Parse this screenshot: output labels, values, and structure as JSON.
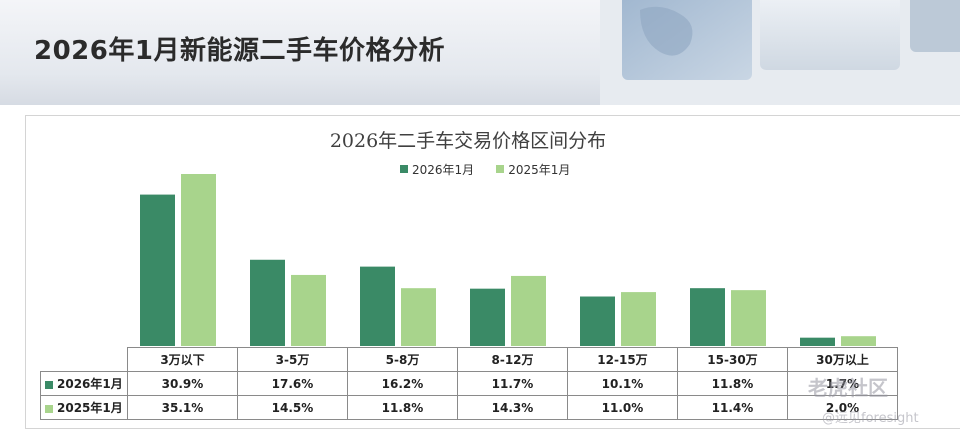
{
  "header": {
    "title": "2026年1月新能源二手车价格分析"
  },
  "chart_data": {
    "type": "bar",
    "title": "2026年二手车交易价格区间分布",
    "categories": [
      "3万以下",
      "3-5万",
      "5-8万",
      "8-12万",
      "12-15万",
      "15-30万",
      "30万以上"
    ],
    "series": [
      {
        "name": "2026年1月",
        "values": [
          30.9,
          17.6,
          16.2,
          11.7,
          10.1,
          11.8,
          1.7
        ],
        "labels": [
          "30.9%",
          "17.6%",
          "16.2%",
          "11.7%",
          "10.1%",
          "11.8%",
          "1.7%"
        ],
        "color": "#3a8a66"
      },
      {
        "name": "2025年1月",
        "values": [
          35.1,
          14.5,
          11.8,
          14.3,
          11.0,
          11.4,
          2.0
        ],
        "labels": [
          "35.1%",
          "14.5%",
          "11.8%",
          "14.3%",
          "11.0%",
          "11.4%",
          "2.0%"
        ],
        "color": "#a8d48c"
      }
    ],
    "ylim": [
      0,
      40
    ],
    "grid": false,
    "legend": "top-center"
  },
  "watermark": {
    "line1": "老虎社区",
    "line2": "@远见foresight"
  }
}
